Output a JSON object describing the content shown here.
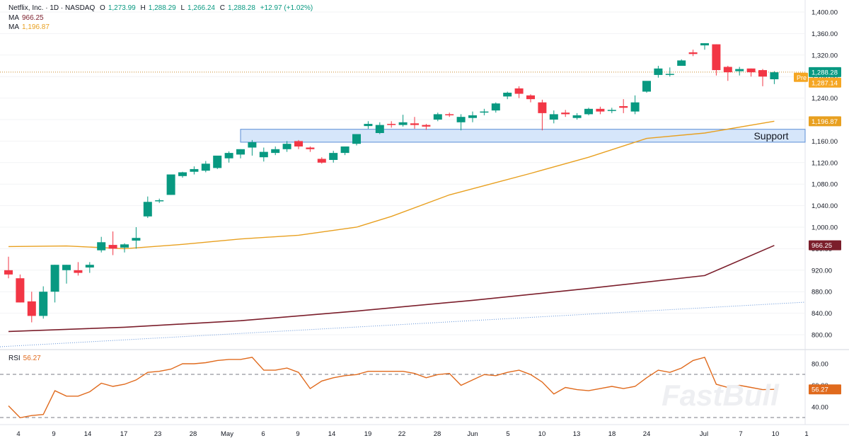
{
  "legend": {
    "symbol": "Netflix, Inc. · 1D · NASDAQ",
    "open_label": "O",
    "open": "1,273.99",
    "high_label": "H",
    "high": "1,288.29",
    "low_label": "L",
    "low": "1,266.24",
    "close_label": "C",
    "close": "1,288.28",
    "change": "+12.97 (+1.02%)",
    "ma1_label": "MA",
    "ma1_value": "966.25",
    "ma2_label": "MA",
    "ma2_value": "1,196.87",
    "rsi_label": "RSI",
    "rsi_value": "56.27"
  },
  "badges": {
    "last_price": "1,288.28",
    "pre_label": "Pre",
    "pre_price": "1,287.14",
    "ma2": "1,196.87",
    "ma1": "966.25",
    "rsi": "56.27"
  },
  "annotation": {
    "support_label": "Support"
  },
  "watermark": "FastBull",
  "colors": {
    "up": "#089981",
    "down": "#f23645",
    "ma1": "#7b1e2b",
    "ma2": "#e8a020",
    "rsi": "#e06a1d",
    "support_fill": "#d6e6fa",
    "support_stroke": "#5b8ed6",
    "trend": "#5b8ed6"
  },
  "chart_data": {
    "type": "candlestick",
    "price_axis": {
      "ylim": [
        780,
        1400
      ],
      "ticks": [
        "1,400.00",
        "1,360.00",
        "1,320.00",
        "1,280.00",
        "1,240.00",
        "1,200.00",
        "1,160.00",
        "1,120.00",
        "1,080.00",
        "1,040.00",
        "1,000.00",
        "960.00",
        "920.00",
        "880.00",
        "840.00",
        "800.00"
      ]
    },
    "rsi_axis": {
      "ylim": [
        30,
        90
      ],
      "ticks": [
        "80.00",
        "60.00",
        "40.00"
      ],
      "levels": [
        70,
        30
      ]
    },
    "x_ticks": [
      "4",
      "9",
      "14",
      "17",
      "23",
      "28",
      "May",
      "6",
      "9",
      "14",
      "19",
      "22",
      "28",
      "Jun",
      "5",
      "10",
      "13",
      "18",
      "24",
      "Jul",
      "7",
      "10",
      "1"
    ],
    "candles": [
      [
        920,
        945,
        905,
        912
      ],
      [
        905,
        912,
        860,
        860
      ],
      [
        862,
        880,
        823,
        835
      ],
      [
        835,
        890,
        830,
        880
      ],
      [
        880,
        930,
        860,
        930
      ],
      [
        920,
        930,
        895,
        930
      ],
      [
        920,
        935,
        910,
        915
      ],
      [
        925,
        935,
        915,
        930
      ],
      [
        957,
        982,
        953,
        972
      ],
      [
        967,
        992,
        948,
        960
      ],
      [
        962,
        970,
        953,
        968
      ],
      [
        975,
        1000,
        960,
        980
      ],
      [
        1020,
        1057,
        1017,
        1047
      ],
      [
        1050,
        1053,
        1045,
        1050
      ],
      [
        1060,
        1095,
        1060,
        1098
      ],
      [
        1095,
        1103,
        1092,
        1102
      ],
      [
        1103,
        1113,
        1098,
        1108
      ],
      [
        1105,
        1123,
        1102,
        1118
      ],
      [
        1110,
        1130,
        1108,
        1133
      ],
      [
        1128,
        1141,
        1120,
        1138
      ],
      [
        1135,
        1145,
        1128,
        1145
      ],
      [
        1148,
        1162,
        1133,
        1158
      ],
      [
        1130,
        1148,
        1122,
        1140
      ],
      [
        1138,
        1150,
        1134,
        1145
      ],
      [
        1145,
        1160,
        1140,
        1155
      ],
      [
        1160,
        1162,
        1145,
        1150
      ],
      [
        1148,
        1150,
        1140,
        1145
      ],
      [
        1127,
        1130,
        1118,
        1120
      ],
      [
        1125,
        1142,
        1120,
        1138
      ],
      [
        1138,
        1148,
        1134,
        1150
      ],
      [
        1155,
        1173,
        1152,
        1173
      ],
      [
        1188,
        1197,
        1183,
        1192
      ],
      [
        1175,
        1195,
        1173,
        1190
      ],
      [
        1192,
        1197,
        1185,
        1190
      ],
      [
        1190,
        1209,
        1187,
        1195
      ],
      [
        1193,
        1205,
        1183,
        1190
      ],
      [
        1190,
        1192,
        1181,
        1187
      ],
      [
        1200,
        1213,
        1197,
        1210
      ],
      [
        1210,
        1213,
        1205,
        1208
      ],
      [
        1195,
        1210,
        1180,
        1205
      ],
      [
        1203,
        1215,
        1195,
        1208
      ],
      [
        1215,
        1220,
        1208,
        1215
      ],
      [
        1217,
        1232,
        1213,
        1230
      ],
      [
        1243,
        1252,
        1238,
        1250
      ],
      [
        1258,
        1262,
        1240,
        1248
      ],
      [
        1245,
        1247,
        1232,
        1238
      ],
      [
        1232,
        1237,
        1180,
        1212
      ],
      [
        1200,
        1217,
        1193,
        1210
      ],
      [
        1213,
        1218,
        1205,
        1210
      ],
      [
        1203,
        1212,
        1200,
        1208
      ],
      [
        1210,
        1222,
        1208,
        1220
      ],
      [
        1220,
        1224,
        1210,
        1215
      ],
      [
        1218,
        1222,
        1212,
        1218
      ],
      [
        1225,
        1238,
        1212,
        1222
      ],
      [
        1215,
        1245,
        1210,
        1232
      ],
      [
        1252,
        1270,
        1250,
        1272
      ],
      [
        1283,
        1300,
        1278,
        1295
      ],
      [
        1285,
        1297,
        1280,
        1285
      ],
      [
        1300,
        1312,
        1300,
        1310
      ],
      [
        1325,
        1330,
        1318,
        1322
      ],
      [
        1338,
        1342,
        1330,
        1342
      ],
      [
        1340,
        1340,
        1282,
        1292
      ],
      [
        1298,
        1300,
        1272,
        1288
      ],
      [
        1290,
        1298,
        1282,
        1294
      ],
      [
        1295,
        1295,
        1280,
        1288
      ],
      [
        1292,
        1294,
        1262,
        1280
      ],
      [
        1275,
        1290,
        1266,
        1288
      ]
    ],
    "ma_slow_name": "MA 966.25",
    "ma_slow": [
      [
        0,
        806
      ],
      [
        10,
        814
      ],
      [
        20,
        826
      ],
      [
        30,
        844
      ],
      [
        40,
        864
      ],
      [
        50,
        886
      ],
      [
        60,
        910
      ],
      [
        66,
        966
      ]
    ],
    "ma_fast_name": "MA 1,196.87",
    "ma_fast": [
      [
        0,
        964
      ],
      [
        5,
        965
      ],
      [
        10,
        960
      ],
      [
        15,
        968
      ],
      [
        20,
        978
      ],
      [
        25,
        985
      ],
      [
        30,
        1000
      ],
      [
        33,
        1020
      ],
      [
        38,
        1060
      ],
      [
        45,
        1100
      ],
      [
        50,
        1130
      ],
      [
        55,
        1165
      ],
      [
        60,
        1175
      ],
      [
        66,
        1197
      ]
    ],
    "trend_line": [
      [
        0,
        772
      ],
      [
        66,
        860
      ]
    ],
    "support_zone": {
      "from": 20,
      "to": 68,
      "low": 1158,
      "high": 1182
    },
    "last_price_line": 1288.28,
    "rsi": [
      41,
      30,
      32,
      33,
      55,
      50,
      50,
      54,
      62,
      59,
      61,
      65,
      72,
      73,
      75,
      80,
      80,
      81,
      83,
      84,
      84,
      86,
      74,
      74,
      76,
      72,
      57,
      64,
      67,
      69,
      70,
      73,
      73,
      73,
      73,
      71,
      67,
      70,
      71,
      60,
      65,
      70,
      69,
      72,
      74,
      70,
      63,
      52,
      58,
      56,
      55,
      57,
      59,
      57,
      59,
      67,
      74,
      72,
      76,
      83,
      86,
      61,
      58,
      60,
      58,
      56,
      56.27
    ]
  }
}
